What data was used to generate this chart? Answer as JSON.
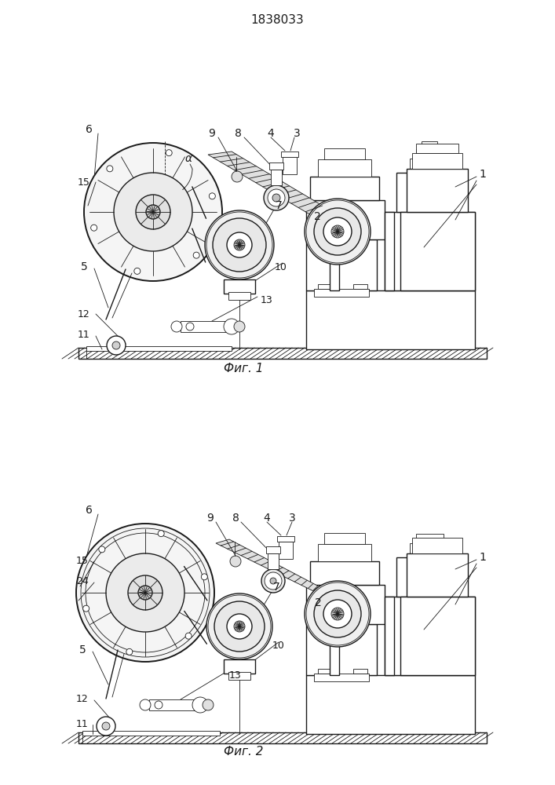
{
  "title": "1838033",
  "fig1_label": "Фиг. 1",
  "fig2_label": "Фиг. 2",
  "bg_color": "#ffffff",
  "line_color": "#1a1a1a",
  "fig_width": 7.07,
  "fig_height": 10.0,
  "dpi": 100
}
